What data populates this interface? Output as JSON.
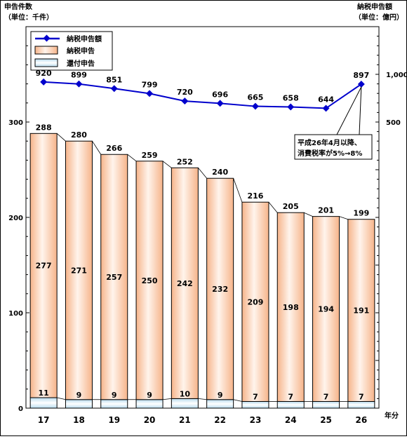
{
  "chart_data": {
    "type": "bar",
    "left_axis_label_line1": "申告件数",
    "left_axis_label_line2": "（単位：千件）",
    "right_axis_label_line1": "納税申告額",
    "right_axis_label_line2": "（単位：億円）",
    "x_axis_unit": "年分",
    "categories": [
      "17",
      "18",
      "19",
      "20",
      "21",
      "22",
      "23",
      "24",
      "25",
      "26"
    ],
    "left_ylim": [
      0,
      400
    ],
    "left_ticks": [
      "0",
      "100",
      "200",
      "300"
    ],
    "right_ylim": [
      -2500,
      1500
    ],
    "right_ticks": [
      "500",
      "1,000"
    ],
    "series": [
      {
        "name": "納税申告",
        "axis": "left",
        "kind": "bar",
        "values": [
          277,
          271,
          257,
          250,
          242,
          232,
          209,
          198,
          194,
          191
        ]
      },
      {
        "name": "還付申告",
        "axis": "left",
        "kind": "bar",
        "values": [
          11,
          9,
          9,
          9,
          10,
          9,
          7,
          7,
          7,
          7
        ]
      },
      {
        "name": "納税申告額",
        "axis": "right",
        "kind": "line",
        "values": [
          920,
          899,
          851,
          799,
          720,
          696,
          665,
          658,
          644,
          897
        ]
      }
    ],
    "totals": [
      288,
      280,
      266,
      259,
      252,
      240,
      216,
      205,
      201,
      199
    ],
    "legend_position": "top-left",
    "annotation": {
      "line1": "平成26年4月以降、",
      "line2": "消費税率が5%→8%"
    },
    "colors": {
      "line": "#0000cc",
      "bar_payment_top": "#f6b48a",
      "bar_payment_mid": "#fff4ec",
      "bar_refund_top": "#d5ebf6",
      "bar_refund_mid": "#ffffff"
    }
  }
}
